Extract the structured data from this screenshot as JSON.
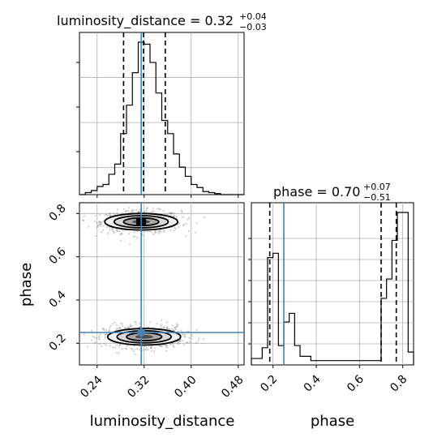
{
  "chart_data": {
    "type": "corner",
    "parameters": [
      "luminosity_distance",
      "phase"
    ],
    "axis_labels": {
      "x_bottom_left": "luminosity_distance",
      "x_bottom_right": "phase",
      "y_left": "phase"
    },
    "titles": {
      "luminosity_distance": {
        "text": "luminosity_distance = 0.32",
        "plus": "+0.04",
        "minus": "−0.03"
      },
      "phase": {
        "text": "phase = 0.70",
        "plus": "+0.07",
        "minus": "−0.51"
      }
    },
    "truths": {
      "luminosity_distance": 0.315,
      "phase": 0.25
    },
    "truth_color": "#4682b4",
    "ranges": {
      "luminosity_distance": [
        0.21,
        0.49
      ],
      "phase": [
        0.1,
        0.85
      ]
    },
    "ticks": {
      "luminosity_distance": [
        0.24,
        0.32,
        0.4,
        0.48
      ],
      "luminosity_distance_labels": [
        "0.24",
        "0.32",
        "0.40",
        "0.48"
      ],
      "phase": [
        0.2,
        0.4,
        0.6,
        0.8
      ],
      "phase_labels": [
        "0.2",
        "0.4",
        "0.6",
        "0.8"
      ]
    },
    "quantiles": {
      "luminosity_distance": [
        0.285,
        0.319,
        0.356
      ],
      "phase": [
        0.185,
        0.7,
        0.77
      ]
    },
    "hist_luminosity_distance": {
      "edges": [
        0.21,
        0.22,
        0.23,
        0.24,
        0.25,
        0.26,
        0.27,
        0.28,
        0.29,
        0.3,
        0.31,
        0.32,
        0.33,
        0.34,
        0.35,
        0.36,
        0.37,
        0.38,
        0.39,
        0.4,
        0.41,
        0.42,
        0.43,
        0.44,
        0.45,
        0.46,
        0.47,
        0.48,
        0.49
      ],
      "counts": [
        0,
        2,
        4,
        8,
        10,
        20,
        30,
        60,
        88,
        120,
        150,
        148,
        130,
        100,
        73,
        60,
        40,
        27,
        18,
        10,
        7,
        3,
        2,
        1,
        0,
        0,
        0,
        0
      ]
    },
    "hist_phase": {
      "edges": [
        0.1,
        0.125,
        0.15,
        0.175,
        0.2,
        0.225,
        0.25,
        0.275,
        0.3,
        0.325,
        0.35,
        0.375,
        0.4,
        0.425,
        0.45,
        0.475,
        0.5,
        0.525,
        0.55,
        0.575,
        0.6,
        0.625,
        0.65,
        0.675,
        0.7,
        0.725,
        0.75,
        0.775,
        0.8,
        0.825,
        0.85
      ],
      "counts": [
        3,
        3,
        8,
        50,
        52,
        9,
        20,
        24,
        9,
        4,
        4,
        2,
        2,
        2,
        2,
        2,
        2,
        2,
        2,
        2,
        2,
        2,
        2,
        2,
        31,
        40,
        58,
        71,
        71,
        6
      ]
    },
    "modes_2d": [
      {
        "luminosity_distance": 0.315,
        "phase": 0.762
      },
      {
        "luminosity_distance": 0.32,
        "phase": 0.23
      }
    ]
  }
}
